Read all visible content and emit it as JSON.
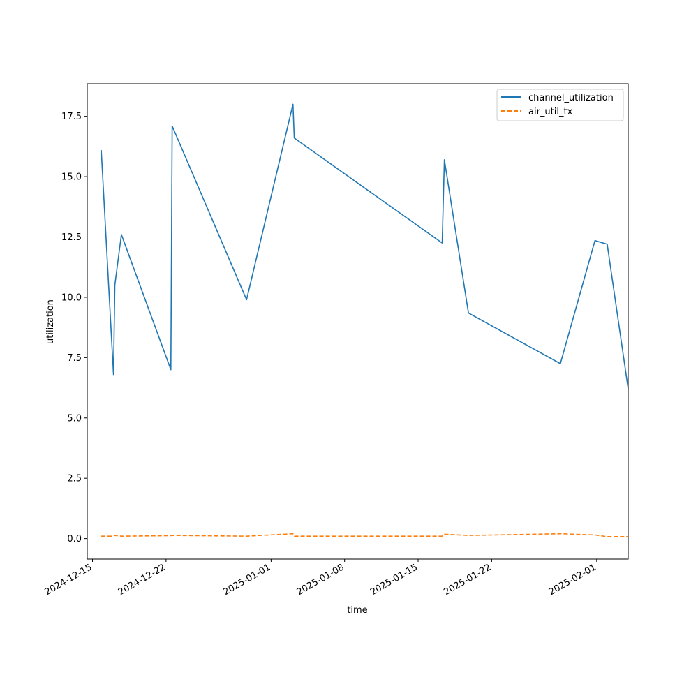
{
  "chart_data": {
    "type": "line",
    "title": "",
    "xlabel": "time",
    "ylabel": "utilization",
    "x_axis_type": "date",
    "xlim": [
      "2024-12-14T12:00",
      "2025-02-04T00:00"
    ],
    "ylim": [
      -0.85,
      18.85
    ],
    "x_ticks": [
      "2024-12-15",
      "2024-12-22",
      "2025-01-01",
      "2025-01-08",
      "2025-01-15",
      "2025-01-22",
      "2025-02-01"
    ],
    "y_ticks": [
      0.0,
      2.5,
      5.0,
      7.5,
      10.0,
      12.5,
      15.0,
      17.5
    ],
    "y_tick_labels": [
      "0.0",
      "2.5",
      "5.0",
      "7.5",
      "10.0",
      "12.5",
      "15.0",
      "17.5"
    ],
    "grid": false,
    "legend_position": "top-right",
    "series": [
      {
        "name": "channel_utilization",
        "color": "#1f77b4",
        "line_style": "solid",
        "x": [
          "2024-12-15T20:00",
          "2024-12-17T00:00",
          "2024-12-17T03:00",
          "2024-12-17T18:00",
          "2024-12-22T11:00",
          "2024-12-22T14:00",
          "2024-12-29T16:00",
          "2025-01-03T02:00",
          "2025-01-03T05:00",
          "2025-01-17T07:00",
          "2025-01-17T12:00",
          "2025-01-19T19:00",
          "2025-01-28T13:00",
          "2025-01-31T20:00",
          "2025-02-02T00:00",
          "2025-02-04T00:00"
        ],
        "values": [
          16.1,
          6.8,
          10.5,
          12.6,
          7.0,
          17.1,
          9.9,
          18.0,
          16.6,
          12.25,
          15.7,
          9.35,
          7.25,
          12.35,
          12.2,
          6.2
        ]
      },
      {
        "name": "air_util_tx",
        "color": "#ff7f0e",
        "line_style": "dashed",
        "x": [
          "2024-12-15T20:00",
          "2024-12-17T00:00",
          "2024-12-17T03:00",
          "2024-12-17T18:00",
          "2024-12-22T11:00",
          "2024-12-22T14:00",
          "2024-12-29T16:00",
          "2025-01-03T02:00",
          "2025-01-03T05:00",
          "2025-01-17T07:00",
          "2025-01-17T12:00",
          "2025-01-19T19:00",
          "2025-01-28T13:00",
          "2025-01-31T20:00",
          "2025-02-02T00:00",
          "2025-02-04T00:00"
        ],
        "values": [
          0.1,
          0.1,
          0.13,
          0.1,
          0.12,
          0.13,
          0.1,
          0.2,
          0.1,
          0.1,
          0.18,
          0.13,
          0.2,
          0.15,
          0.08,
          0.08
        ]
      }
    ]
  }
}
